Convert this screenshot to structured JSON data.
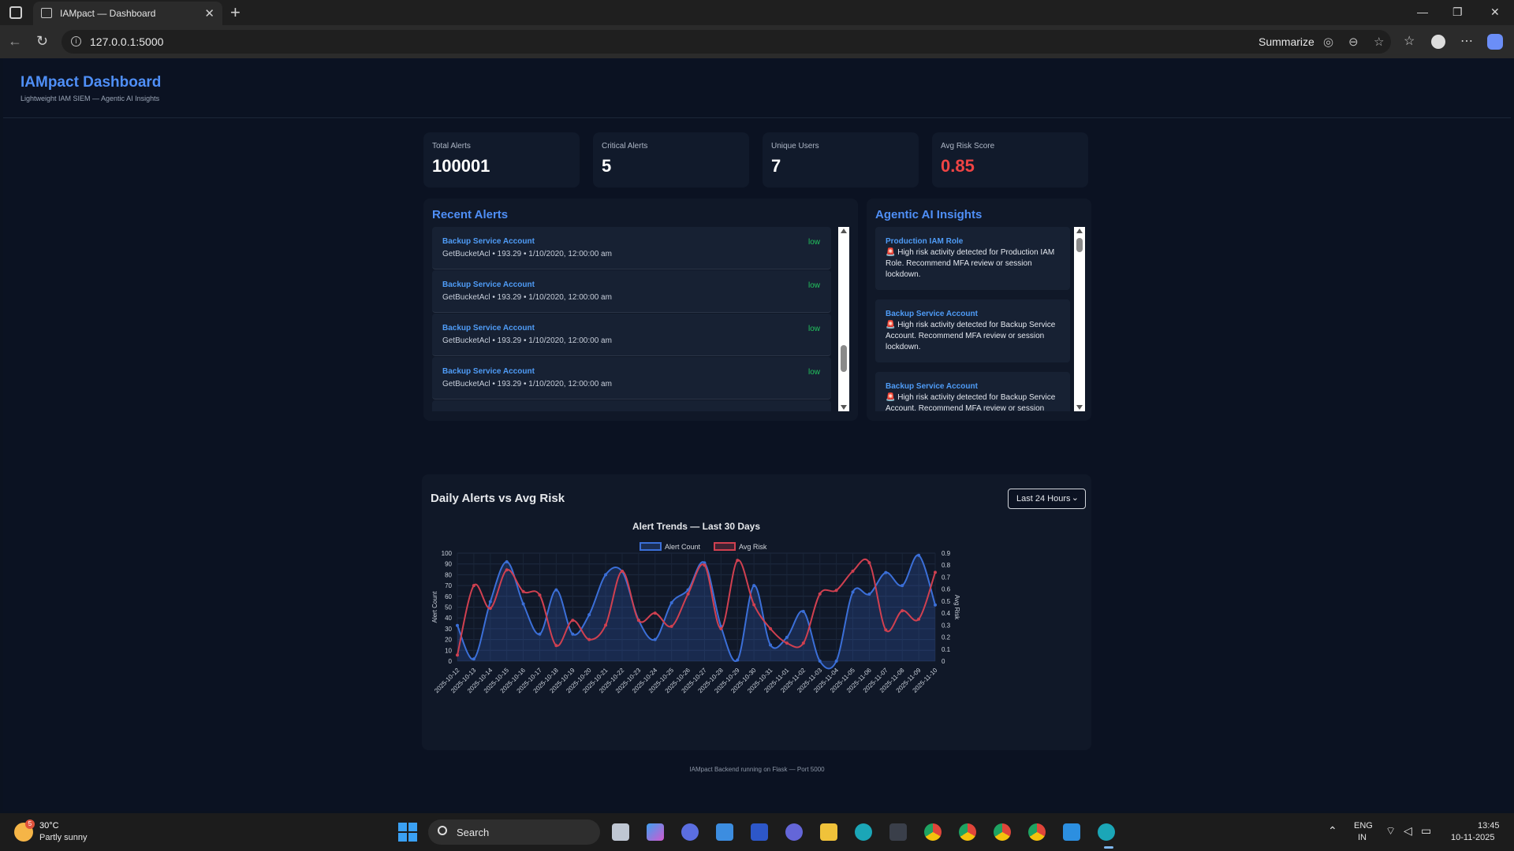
{
  "browser": {
    "tab_title": "IAMpact — Dashboard",
    "url": "127.0.0.1:5000",
    "summarize_label": "Summarize"
  },
  "header": {
    "title": "IAMpact Dashboard",
    "subtitle": "Lightweight IAM SIEM — Agentic AI Insights"
  },
  "stats": [
    {
      "label": "Total Alerts",
      "value": "100001"
    },
    {
      "label": "Critical Alerts",
      "value": "5"
    },
    {
      "label": "Unique Users",
      "value": "7"
    },
    {
      "label": "Avg Risk Score",
      "value": "0.85",
      "color": "#ef4444"
    }
  ],
  "recent_alerts": {
    "title": "Recent Alerts",
    "items": [
      {
        "user": "Backup Service Account",
        "meta": "GetBucketAcl • 193.29 • 1/10/2020, 12:00:00 am",
        "severity": "low"
      },
      {
        "user": "Backup Service Account",
        "meta": "GetBucketAcl • 193.29 • 1/10/2020, 12:00:00 am",
        "severity": "low"
      },
      {
        "user": "Backup Service Account",
        "meta": "GetBucketAcl • 193.29 • 1/10/2020, 12:00:00 am",
        "severity": "low"
      },
      {
        "user": "Backup Service Account",
        "meta": "GetBucketAcl • 193.29 • 1/10/2020, 12:00:00 am",
        "severity": "low"
      }
    ]
  },
  "insights": {
    "title": "Agentic AI Insights",
    "items": [
      {
        "user": "Production IAM Role",
        "text": "High risk activity detected for Production IAM Role. Recommend MFA review or session lockdown."
      },
      {
        "user": "Backup Service Account",
        "text": "High risk activity detected for Backup Service Account. Recommend MFA review or session lockdown."
      },
      {
        "user": "Backup Service Account",
        "text": "High risk activity detected for Backup Service Account. Recommend MFA review or session lockdown."
      }
    ]
  },
  "trend": {
    "heading": "Daily Alerts vs Avg Risk",
    "range_value": "Last 24 Hours"
  },
  "chart_data": {
    "type": "line",
    "title": "Alert Trends — Last 30 Days",
    "ylabel": "Alert Count",
    "y2label": "Avg Risk",
    "legend_position": "top",
    "grid": true,
    "ylim": [
      0,
      100
    ],
    "y2lim": [
      0,
      0.9
    ],
    "yticks": [
      "0",
      "10",
      "20",
      "30",
      "40",
      "50",
      "60",
      "70",
      "80",
      "90",
      "100"
    ],
    "y2ticks": [
      "0",
      "0.1",
      "0.2",
      "0.3",
      "0.4",
      "0.5",
      "0.6",
      "0.7",
      "0.8",
      "0.9"
    ],
    "x": [
      "2025-10-12",
      "2025-10-13",
      "2025-10-14",
      "2025-10-15",
      "2025-10-16",
      "2025-10-17",
      "2025-10-18",
      "2025-10-19",
      "2025-10-20",
      "2025-10-21",
      "2025-10-22",
      "2025-10-23",
      "2025-10-24",
      "2025-10-25",
      "2025-10-26",
      "2025-10-27",
      "2025-10-28",
      "2025-10-29",
      "2025-10-30",
      "2025-10-31",
      "2025-11-01",
      "2025-11-02",
      "2025-11-03",
      "2025-11-04",
      "2025-11-05",
      "2025-11-06",
      "2025-11-07",
      "2025-11-08",
      "2025-11-09",
      "2025-11-10"
    ],
    "series": [
      {
        "name": "Alert Count",
        "axis": "left",
        "color": "#3b6fd8",
        "fill": true,
        "values": [
          33,
          2,
          55,
          92,
          53,
          25,
          66,
          25,
          43,
          80,
          83,
          38,
          20,
          54,
          66,
          91,
          32,
          1,
          70,
          15,
          22,
          46,
          0,
          0,
          64,
          62,
          82,
          70,
          98,
          52
        ]
      },
      {
        "name": "Avg Risk",
        "axis": "right",
        "color": "#d04050",
        "fill": false,
        "values": [
          0.05,
          0.63,
          0.44,
          0.76,
          0.58,
          0.55,
          0.13,
          0.34,
          0.18,
          0.3,
          0.75,
          0.34,
          0.4,
          0.29,
          0.56,
          0.8,
          0.27,
          0.84,
          0.47,
          0.27,
          0.15,
          0.15,
          0.56,
          0.59,
          0.75,
          0.82,
          0.26,
          0.42,
          0.35,
          0.74
        ]
      }
    ]
  },
  "footer": {
    "note": "IAMpact Backend running on Flask — Port 5000"
  },
  "taskbar": {
    "weather_temp": "30°C",
    "weather_desc": "Partly sunny",
    "weather_badge": "5",
    "search_label": "Search",
    "lang_primary": "ENG",
    "lang_secondary": "IN",
    "time": "13:45",
    "date": "10-11-2025"
  }
}
